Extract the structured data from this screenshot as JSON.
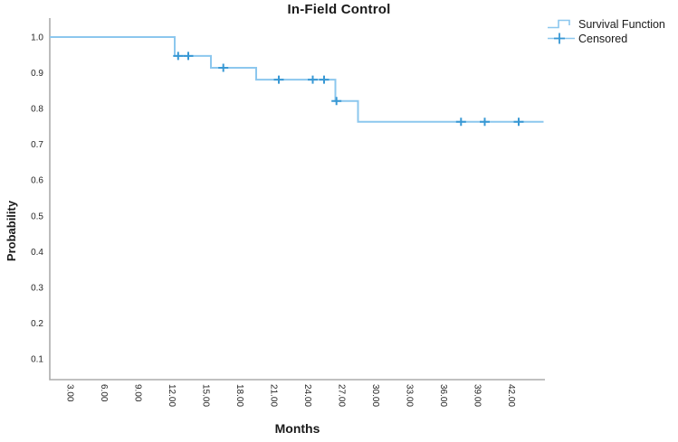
{
  "chart_data": {
    "type": "line",
    "subtype": "kaplan_meier_step",
    "title": "In-Field Control",
    "xlabel": "Months",
    "ylabel": "Probability",
    "xlim": [
      1.16,
      44.92
    ],
    "ylim": [
      0.042,
      1.053
    ],
    "grid": false,
    "legend_position": "outside-top-right",
    "x_ticks": [
      {
        "value": 3,
        "label": "3.00"
      },
      {
        "value": 6,
        "label": "6.00"
      },
      {
        "value": 9,
        "label": "9.00"
      },
      {
        "value": 12,
        "label": "12.00"
      },
      {
        "value": 15,
        "label": "15.00"
      },
      {
        "value": 18,
        "label": "18.00"
      },
      {
        "value": 21,
        "label": "21.00"
      },
      {
        "value": 24,
        "label": "24.00"
      },
      {
        "value": 27,
        "label": "27.00"
      },
      {
        "value": 30,
        "label": "30.00"
      },
      {
        "value": 33,
        "label": "33.00"
      },
      {
        "value": 36,
        "label": "36.00"
      },
      {
        "value": 39,
        "label": "39.00"
      },
      {
        "value": 42,
        "label": "42.00"
      }
    ],
    "y_ticks": [
      {
        "value": 0.1,
        "label": "0.1"
      },
      {
        "value": 0.2,
        "label": "0.2"
      },
      {
        "value": 0.3,
        "label": "0.3"
      },
      {
        "value": 0.4,
        "label": "0.4"
      },
      {
        "value": 0.5,
        "label": "0.5"
      },
      {
        "value": 0.6,
        "label": "0.6"
      },
      {
        "value": 0.7,
        "label": "0.7"
      },
      {
        "value": 0.8,
        "label": "0.8"
      },
      {
        "value": 0.9,
        "label": "0.9"
      },
      {
        "value": 1.0,
        "label": "1.0"
      }
    ],
    "series": [
      {
        "name": "Survival Function",
        "type": "step",
        "points": [
          [
            1.16,
            1.0
          ],
          [
            12.2,
            1.0
          ],
          [
            12.2,
            0.947
          ],
          [
            15.4,
            0.947
          ],
          [
            15.4,
            0.914
          ],
          [
            19.4,
            0.914
          ],
          [
            19.4,
            0.881
          ],
          [
            26.4,
            0.881
          ],
          [
            26.4,
            0.821
          ],
          [
            28.4,
            0.821
          ],
          [
            28.4,
            0.763
          ],
          [
            44.8,
            0.763
          ]
        ]
      },
      {
        "name": "Censored",
        "type": "scatter",
        "marker": "plus",
        "points": [
          [
            12.5,
            0.947
          ],
          [
            13.4,
            0.947
          ],
          [
            16.5,
            0.914
          ],
          [
            21.4,
            0.881
          ],
          [
            24.4,
            0.881
          ],
          [
            25.4,
            0.881
          ],
          [
            26.5,
            0.821
          ],
          [
            37.5,
            0.763
          ],
          [
            39.6,
            0.763
          ],
          [
            42.6,
            0.763
          ]
        ]
      }
    ],
    "colors": {
      "curve": "#8CC7EE",
      "censor": "#3898D4",
      "axis": "#ABABAB",
      "text": "#262626"
    }
  }
}
